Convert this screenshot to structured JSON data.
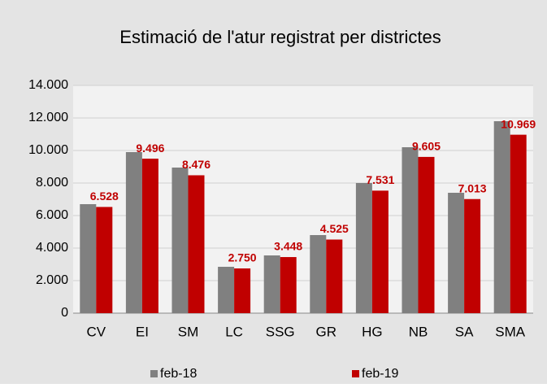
{
  "chart_data": {
    "type": "bar",
    "title": "Estimació de l'atur registrat per districtes",
    "categories": [
      "CV",
      "EI",
      "SM",
      "LC",
      "SSG",
      "GR",
      "HG",
      "NB",
      "SA",
      "SMA"
    ],
    "series": [
      {
        "name": "feb-18",
        "color": "#808080",
        "values": [
          6700,
          9900,
          8950,
          2850,
          3550,
          4800,
          8000,
          10200,
          7400,
          11800
        ]
      },
      {
        "name": "feb-19",
        "color": "#c00000",
        "values": [
          6528,
          9496,
          8476,
          2750,
          3448,
          4525,
          7531,
          9605,
          7013,
          10969
        ],
        "value_labels": [
          "6.528",
          "9.496",
          "8.476",
          "2.750",
          "3.448",
          "4.525",
          "7.531",
          "9.605",
          "7.013",
          "10.969"
        ]
      }
    ],
    "ylim": [
      0,
      14000
    ],
    "yticks": [
      0,
      {
        "value": 2000,
        "label": "2.000"
      },
      {
        "value": 4000,
        "label": "4.000"
      },
      {
        "value": 6000,
        "label": "6.000"
      },
      {
        "value": 8000,
        "label": "8.000"
      },
      {
        "value": 10000,
        "label": "10.000"
      },
      {
        "value": 12000,
        "label": "12.000"
      },
      {
        "value": 14000,
        "label": "14.000"
      }
    ],
    "grid": true,
    "legend": "bottom"
  }
}
